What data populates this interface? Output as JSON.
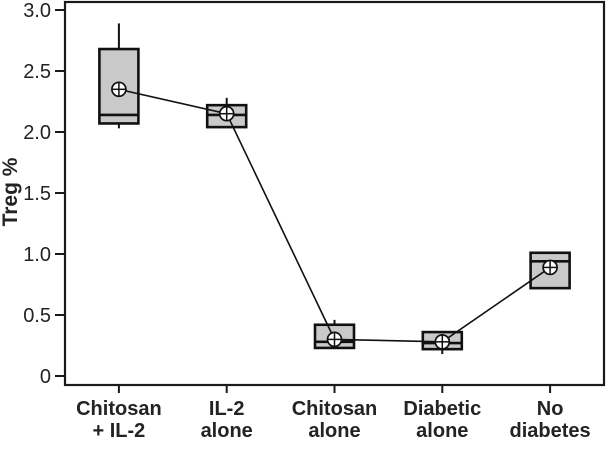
{
  "figure": {
    "background": "#ffffff",
    "frame_color": "#1a1a1a",
    "box_fill": "#c9c9c9",
    "box_stroke": "#111111",
    "line_color": "#111111",
    "text_color": "#232323"
  },
  "chart_data": {
    "type": "boxplot",
    "title": "",
    "ylabel": "Treg %",
    "xlabel": "",
    "ylim": [
      0,
      3.0
    ],
    "grid": false,
    "legend": "none",
    "mean_marker": "circle-plus",
    "means_connected": true,
    "y_ticks": [
      {
        "value": 3.0,
        "label": "3.0"
      },
      {
        "value": 2.5,
        "label": "2.5"
      },
      {
        "value": 2.0,
        "label": "2.0"
      },
      {
        "value": 1.5,
        "label": "1.5"
      },
      {
        "value": 1.0,
        "label": "1.0"
      },
      {
        "value": 0.5,
        "label": "0.5"
      },
      {
        "value": 0,
        "label": "0"
      }
    ],
    "categories": [
      {
        "label_lines": [
          "Chitosan",
          "+ IL-2"
        ],
        "whisker_low": 2.03,
        "q1": 2.07,
        "median": 2.14,
        "q3": 2.68,
        "whisker_high": 2.89,
        "mean": 2.35
      },
      {
        "label_lines": [
          "IL-2",
          "alone"
        ],
        "whisker_low": 2.04,
        "q1": 2.04,
        "median": 2.14,
        "q3": 2.22,
        "whisker_high": 2.28,
        "mean": 2.15
      },
      {
        "label_lines": [
          "Chitosan",
          "alone"
        ],
        "whisker_low": 0.23,
        "q1": 0.23,
        "median": 0.28,
        "q3": 0.42,
        "whisker_high": 0.46,
        "mean": 0.3
      },
      {
        "label_lines": [
          "Diabetic",
          "alone"
        ],
        "whisker_low": 0.18,
        "q1": 0.22,
        "median": 0.27,
        "q3": 0.36,
        "whisker_high": 0.36,
        "mean": 0.28
      },
      {
        "label_lines": [
          "No",
          "diabetes"
        ],
        "whisker_low": 0.72,
        "q1": 0.72,
        "median": 0.94,
        "q3": 1.01,
        "whisker_high": 1.01,
        "mean": 0.89
      }
    ]
  }
}
